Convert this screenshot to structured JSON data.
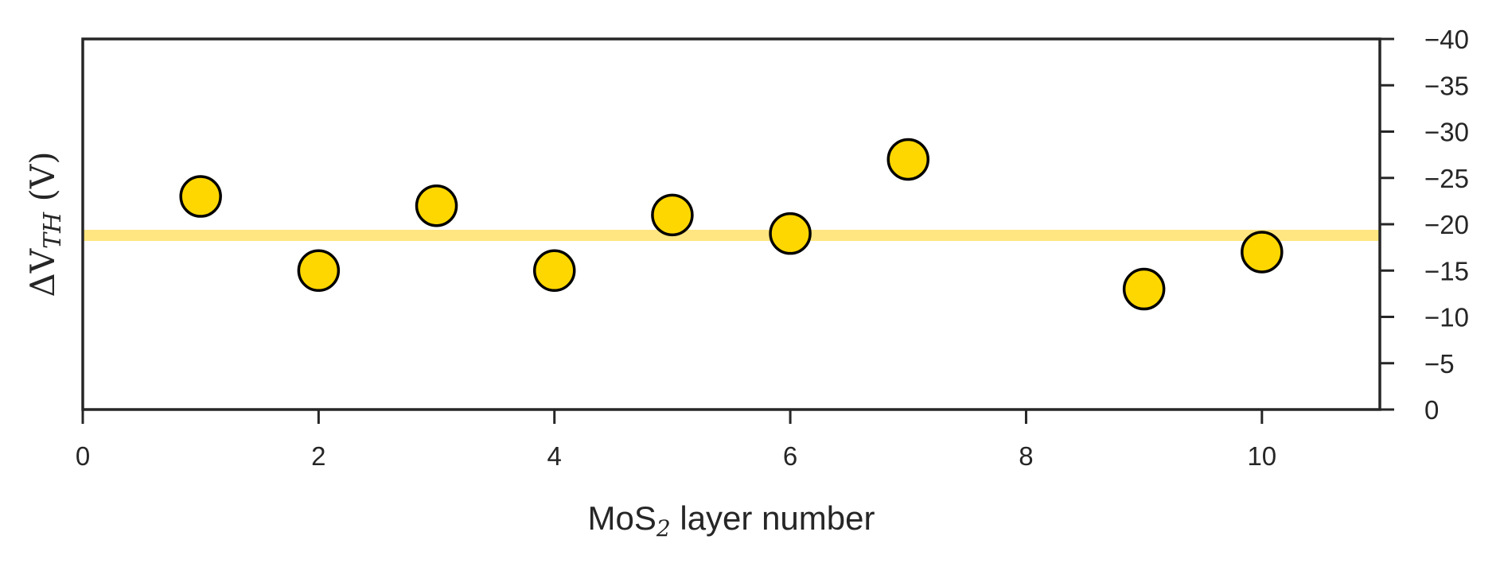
{
  "chart_data": {
    "type": "scatter",
    "x": [
      1,
      2,
      3,
      4,
      5,
      6,
      7,
      9,
      10
    ],
    "y": [
      -23,
      -15,
      -22,
      -15,
      -21,
      -19,
      -27,
      -13,
      -17
    ],
    "reference_line": {
      "y": -18.8,
      "color": "#FFE680"
    },
    "xlim": [
      0,
      11
    ],
    "ylim": [
      0,
      -40
    ],
    "x_ticks": [
      0,
      2,
      4,
      6,
      8,
      10
    ],
    "y_ticks": [
      0,
      -5,
      -10,
      -15,
      -20,
      -25,
      -30,
      -35,
      -40
    ],
    "y_tick_labels": [
      "0",
      "−5",
      "−10",
      "−15",
      "−20",
      "−25",
      "−30",
      "−35",
      "−40"
    ],
    "y_axis_side": "right",
    "xlabel": {
      "main": "MoS",
      "subscript": "2",
      "rest": " layer number"
    },
    "ylabel": {
      "prefix": "ΔV",
      "subscript": "TH",
      "suffix": " (V)"
    },
    "grid": false,
    "marker_color": "#FFD700",
    "marker_edge_color": "#000000"
  }
}
